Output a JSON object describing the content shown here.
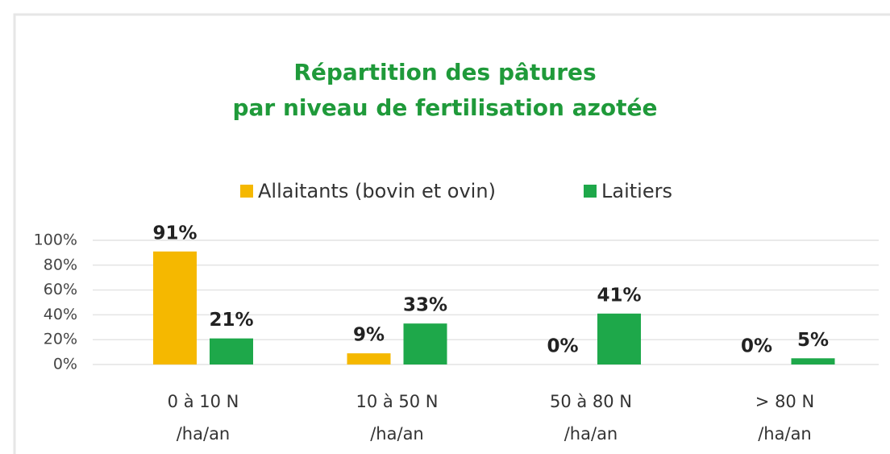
{
  "chart_data": {
    "type": "bar",
    "title": "Répartition des pâtures\npar niveau de fertilisation  azotée",
    "categories": [
      "0 à 10 N\n/ha/an",
      "10 à 50 N\n/ha/an",
      "50 à 80 N\n/ha/an",
      "> 80 N\n/ha/an"
    ],
    "series": [
      {
        "name": "Allaitants (bovin et ovin)",
        "color": "#f5b800",
        "values": [
          91,
          9,
          0,
          0
        ],
        "value_labels": [
          "91%",
          "9%",
          "0%",
          "0%"
        ]
      },
      {
        "name": "Laitiers",
        "color": "#1ea84a",
        "values": [
          21,
          33,
          41,
          5
        ],
        "value_labels": [
          "21%",
          "33%",
          "41%",
          "5%"
        ]
      }
    ],
    "ylim": [
      0,
      100
    ],
    "yticks": [
      {
        "value": 0,
        "label": "0%"
      },
      {
        "value": 20,
        "label": "20%"
      },
      {
        "value": 40,
        "label": "40%"
      },
      {
        "value": 60,
        "label": "60%"
      },
      {
        "value": 80,
        "label": "80%"
      },
      {
        "value": 100,
        "label": "100%"
      }
    ],
    "grid": true,
    "legend": "top"
  }
}
